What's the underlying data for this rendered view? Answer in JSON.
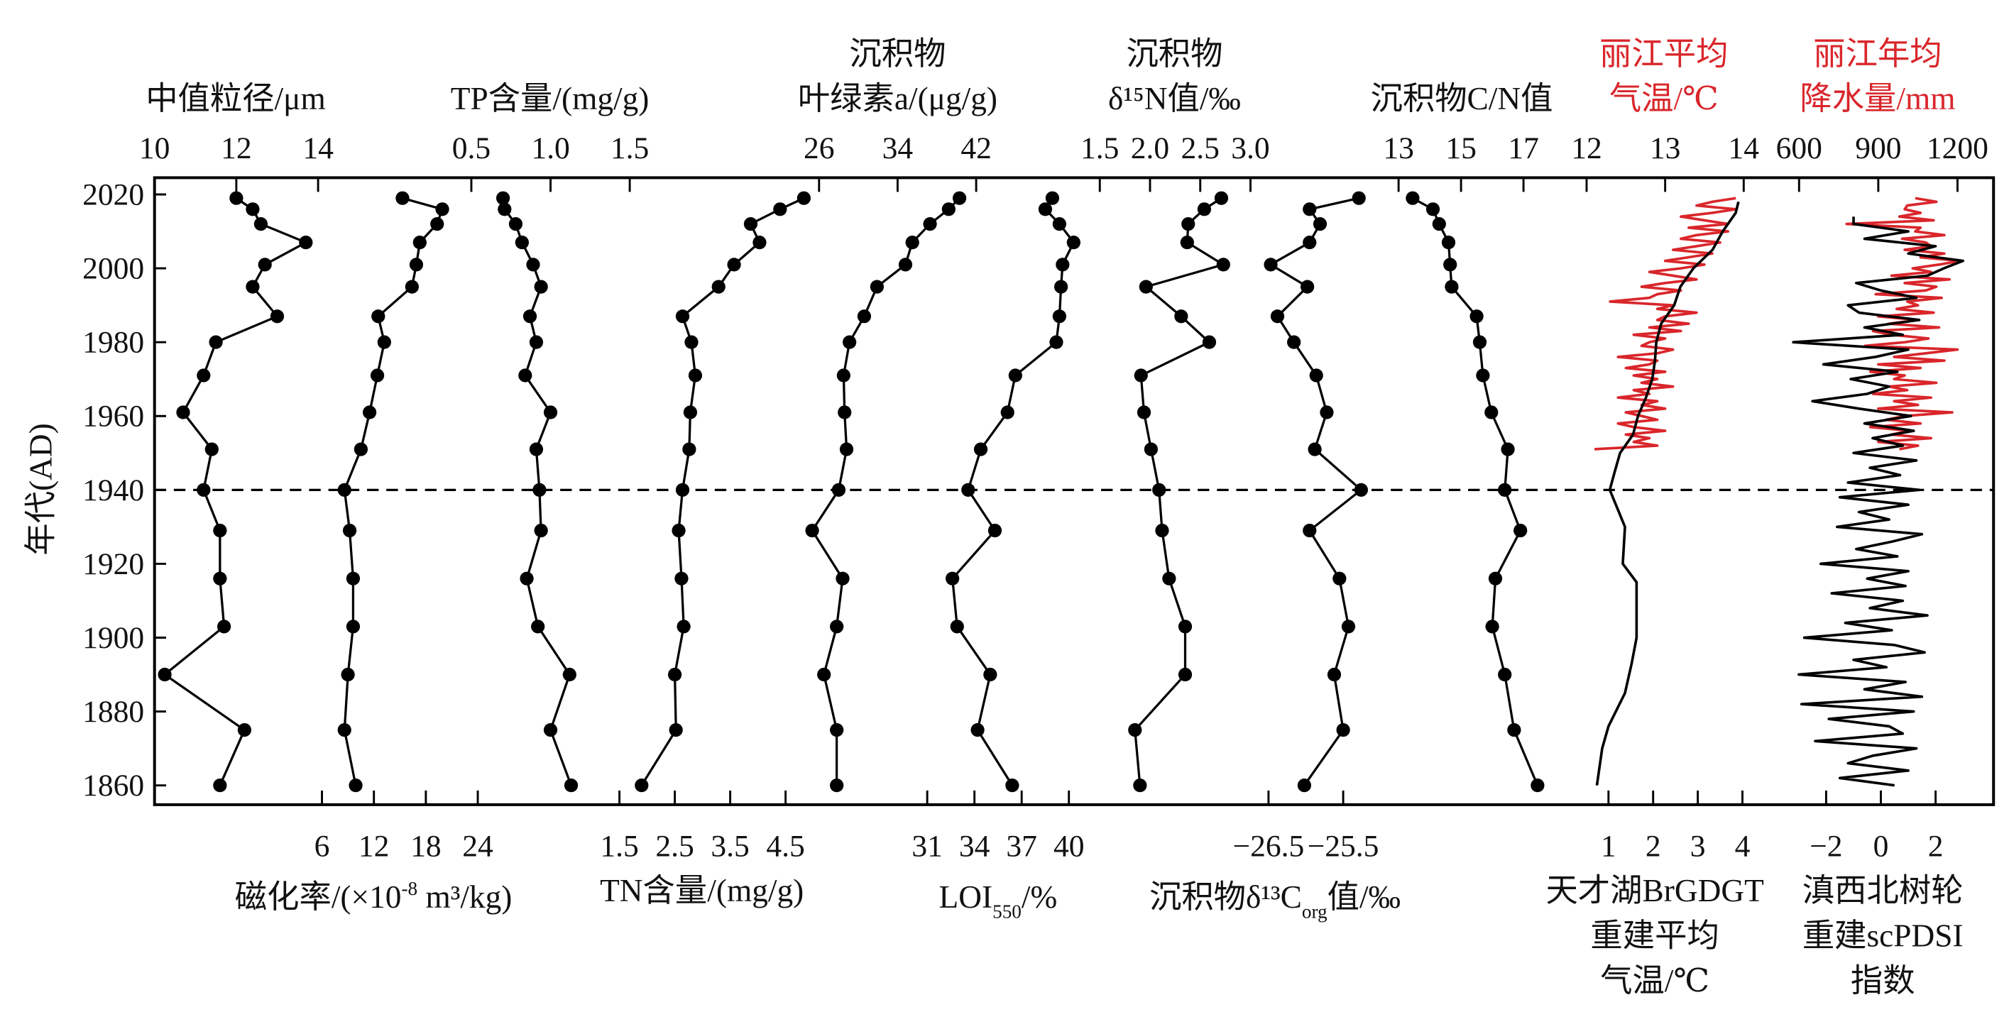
{
  "chart_data": {
    "type": "line",
    "title": "",
    "y_axis": {
      "label": "年代(AD)",
      "ticks": [
        1860,
        1880,
        1900,
        1920,
        1940,
        1960,
        1980,
        2000,
        2020
      ],
      "ylim": [
        1856,
        2024
      ]
    },
    "reference_line": {
      "year": 1940,
      "style": "dashed"
    },
    "sample_years": [
      2019,
      2016,
      2012,
      2007,
      2001,
      1995,
      1987,
      1980,
      1971,
      1961,
      1951,
      1940,
      1929,
      1916,
      1903,
      1890,
      1875,
      1860
    ],
    "series": [
      {
        "id": "grain",
        "axis": "top",
        "label_lines": [
          "中值粒径/μm"
        ],
        "ticks": [
          "10",
          "12",
          "14"
        ],
        "tick_values": [
          10,
          12,
          14
        ],
        "xlim": [
          10,
          14
        ],
        "color": "#000000",
        "markers": true,
        "values": [
          12.0,
          12.4,
          12.6,
          13.7,
          12.7,
          12.4,
          13.0,
          11.5,
          11.2,
          10.7,
          11.4,
          11.2,
          11.6,
          11.6,
          11.7,
          10.25,
          12.2,
          11.6
        ]
      },
      {
        "id": "mag",
        "axis": "bottom",
        "label_parts": {
          "pre": "磁化率/(×10",
          "sup": "-8",
          "post": " m³/kg)"
        },
        "ticks": [
          "6",
          "12",
          "18",
          "24"
        ],
        "tick_values": [
          6,
          12,
          18,
          24
        ],
        "xlim": [
          6,
          24
        ],
        "color": "#000000",
        "markers": true,
        "values": [
          15.3,
          19.9,
          19.3,
          17.3,
          16.9,
          16.4,
          12.5,
          13.2,
          12.4,
          11.5,
          10.5,
          8.6,
          9.2,
          9.6,
          9.6,
          9.0,
          8.6,
          9.9
        ]
      },
      {
        "id": "tp",
        "axis": "top",
        "label_lines": [
          "TP含量/(mg/g)"
        ],
        "ticks": [
          "0.5",
          "1.0",
          "1.5"
        ],
        "tick_values": [
          0.5,
          1.0,
          1.5
        ],
        "xlim": [
          0.5,
          1.5
        ],
        "color": "#000000",
        "markers": true,
        "values": [
          0.7,
          0.71,
          0.78,
          0.82,
          0.89,
          0.94,
          0.87,
          0.91,
          0.84,
          1.0,
          0.91,
          0.93,
          0.94,
          0.85,
          0.92,
          1.12,
          1.0,
          1.13
        ]
      },
      {
        "id": "tn",
        "axis": "bottom",
        "label_lines": [
          "TN含量/(mg/g)"
        ],
        "ticks": [
          "1.5",
          "2.5",
          "3.5",
          "4.5"
        ],
        "tick_values": [
          1.5,
          2.5,
          3.5,
          4.5
        ],
        "xlim": [
          1.5,
          4.5
        ],
        "color": "#000000",
        "markers": true,
        "values": [
          4.83,
          4.4,
          3.87,
          4.03,
          3.57,
          3.29,
          2.64,
          2.8,
          2.87,
          2.78,
          2.76,
          2.64,
          2.57,
          2.62,
          2.66,
          2.5,
          2.52,
          1.9
        ]
      },
      {
        "id": "chl",
        "axis": "top",
        "label_lines": [
          "沉积物",
          "叶绿素a/(μg/g)"
        ],
        "ticks": [
          "26",
          "34",
          "42"
        ],
        "tick_values": [
          26,
          34,
          42
        ],
        "xlim": [
          26,
          42
        ],
        "color": "#000000",
        "markers": true,
        "values": [
          40.3,
          39.2,
          37.3,
          35.5,
          34.8,
          31.9,
          30.6,
          29.1,
          28.5,
          28.6,
          28.8,
          28.0,
          25.3,
          28.4,
          27.8,
          26.5,
          27.8,
          27.8
        ]
      },
      {
        "id": "loi",
        "axis": "bottom",
        "label_parts": {
          "pre": "LOI",
          "sub": "550",
          "post": "/%"
        },
        "ticks": [
          "31",
          "34",
          "37",
          "40"
        ],
        "tick_values": [
          31,
          34,
          37,
          40
        ],
        "xlim": [
          31,
          40
        ],
        "color": "#000000",
        "markers": true,
        "values": [
          38.95,
          38.5,
          39.4,
          40.3,
          39.6,
          39.5,
          39.4,
          39.2,
          36.6,
          36.1,
          34.4,
          33.6,
          35.3,
          32.6,
          32.9,
          35.0,
          34.2,
          36.4
        ]
      },
      {
        "id": "d15n",
        "axis": "top",
        "label_lines": [
          "沉积物",
          "δ¹⁵N值/‰"
        ],
        "ticks": [
          "1.5",
          "2.0",
          "2.5",
          "3.0"
        ],
        "tick_values": [
          1.5,
          2.0,
          2.5,
          3.0
        ],
        "xlim": [
          1.5,
          3.0
        ],
        "color": "#000000",
        "markers": true,
        "values": [
          2.71,
          2.54,
          2.38,
          2.37,
          2.73,
          1.96,
          2.31,
          2.59,
          1.91,
          1.94,
          2.01,
          2.09,
          2.12,
          2.19,
          2.35,
          2.35,
          1.85,
          1.9
        ]
      },
      {
        "id": "d13c",
        "axis": "bottom",
        "label_parts": {
          "pre": "沉积物δ¹³C",
          "sub": "org",
          "post": "值/‰"
        },
        "ticks": [
          "−26.5",
          "−25.5"
        ],
        "tick_values": [
          -26.5,
          -25.5
        ],
        "xlim": [
          -26.5,
          -25.5
        ],
        "color": "#000000",
        "markers": true,
        "values": [
          -25.29,
          -25.95,
          -25.81,
          -25.95,
          -26.47,
          -25.98,
          -26.38,
          -26.16,
          -25.86,
          -25.72,
          -25.88,
          -25.26,
          -25.95,
          -25.55,
          -25.43,
          -25.62,
          -25.5,
          -26.02
        ]
      },
      {
        "id": "cn",
        "axis": "top",
        "label_lines": [
          "沉积物C/N值"
        ],
        "ticks": [
          "13",
          "15",
          "17"
        ],
        "tick_values": [
          13,
          15,
          17
        ],
        "xlim": [
          13,
          17
        ],
        "color": "#000000",
        "markers": true,
        "values": [
          13.45,
          14.1,
          14.3,
          14.6,
          14.65,
          14.7,
          15.5,
          15.6,
          15.7,
          15.97,
          16.5,
          16.4,
          16.9,
          16.1,
          16.0,
          16.4,
          16.7,
          17.45
        ]
      },
      {
        "id": "tempobs",
        "axis": "top",
        "label_lines": [
          "丽江平均",
          "气温/℃"
        ],
        "ticks": [
          "12",
          "13",
          "14"
        ],
        "tick_values": [
          12,
          13,
          14
        ],
        "xlim": [
          12,
          14
        ],
        "color": "#d9262b",
        "markers": false,
        "start_year": 1951,
        "step": 1,
        "values": [
          12.1,
          12.9,
          12.6,
          12.8,
          12.5,
          13.0,
          12.6,
          12.4,
          12.9,
          12.7,
          12.5,
          13.0,
          12.7,
          12.9,
          12.4,
          12.8,
          12.6,
          13.1,
          12.7,
          12.9,
          12.6,
          13.0,
          12.5,
          12.8,
          12.9,
          12.4,
          12.9,
          13.1,
          12.7,
          12.8,
          13.0,
          12.6,
          13.2,
          12.8,
          13.3,
          12.9,
          13.0,
          13.4,
          12.9,
          13.1,
          12.3,
          12.8,
          12.9,
          13.2,
          12.7,
          13.0,
          13.4,
          13.1,
          12.8,
          13.2,
          13.5,
          13.0,
          13.3,
          13.6,
          13.1,
          13.4,
          13.7,
          13.2,
          13.4,
          13.8,
          13.3,
          13.8,
          13.5,
          13.2,
          13.6,
          13.9,
          13.4,
          13.6,
          13.9
        ]
      },
      {
        "id": "gdgt",
        "axis": "bottom",
        "label_lines": [
          "天才湖BrGDGT",
          "重建平均",
          "气温/℃"
        ],
        "ticks": [
          "1",
          "2",
          "3",
          "4"
        ],
        "tick_values": [
          1,
          2,
          3,
          4
        ],
        "xlim": [
          1,
          4
        ],
        "color": "#000000",
        "markers": false,
        "years": [
          1860,
          1870,
          1876,
          1885,
          1893,
          1900,
          1915,
          1920,
          1930,
          1935,
          1940,
          1945,
          1950,
          1955,
          1960,
          1965,
          1970,
          1975,
          1980,
          1985,
          1990,
          1995,
          2000,
          2005,
          2010,
          2015,
          2018
        ],
        "values": [
          0.74,
          0.86,
          1.0,
          1.37,
          1.52,
          1.63,
          1.63,
          1.32,
          1.37,
          1.2,
          1.03,
          1.14,
          1.26,
          1.55,
          1.66,
          1.84,
          1.98,
          2.04,
          2.07,
          2.18,
          2.47,
          2.61,
          2.9,
          3.33,
          3.56,
          3.85,
          3.91
        ]
      },
      {
        "id": "precip",
        "axis": "top",
        "label_lines": [
          "丽江年均",
          "降水量/mm"
        ],
        "ticks": [
          "600",
          "900",
          "1200"
        ],
        "tick_values": [
          600,
          900,
          1200
        ],
        "xlim": [
          600,
          1200
        ],
        "color": "#d9262b",
        "markers": false,
        "start_year": 1951,
        "step": 1,
        "values": [
          980,
          1050,
          900,
          1100,
          950,
          1020,
          870,
          1060,
          930,
          1000,
          1180,
          900,
          1050,
          960,
          1100,
          880,
          1010,
          940,
          1120,
          960,
          1000,
          870,
          1060,
          900,
          1150,
          960,
          1080,
          1200,
          850,
          1000,
          1090,
          950,
          880,
          1130,
          940,
          1050,
          900,
          1110,
          970,
          1050,
          1010,
          1140,
          890,
          1080,
          1120,
          1000,
          1170,
          950,
          1100,
          1030,
          1130,
          1210,
          1060,
          1150,
          1000,
          1100,
          1080,
          990,
          1150,
          1040,
          1060,
          780,
          1110,
          980,
          1060,
          1000,
          1010,
          1120,
          1040
        ]
      },
      {
        "id": "pdsi",
        "axis": "bottom",
        "label_lines": [
          "滇西北树轮",
          "重建scPDSI",
          "指数"
        ],
        "ticks": [
          "−2",
          "0",
          "2"
        ],
        "tick_values": [
          -2,
          0,
          2
        ],
        "xlim": [
          -2,
          2
        ],
        "color": "#000000",
        "markers": false,
        "start_year": 1860,
        "step": 2,
        "values": [
          0.5,
          -1.5,
          1.0,
          -1.2,
          -0.3,
          1.3,
          -2.4,
          0.8,
          0.3,
          -1.9,
          1.2,
          -2.9,
          1.5,
          -0.6,
          0.9,
          -3.0,
          0.2,
          -1.0,
          1.6,
          0.5,
          -2.8,
          0.4,
          -1.3,
          1.7,
          -0.4,
          0.8,
          -1.8,
          0.9,
          -0.5,
          1.0,
          -2.2,
          0.6,
          -0.9,
          0.4,
          1.5,
          -1.6,
          0.3,
          -0.8,
          1.0,
          -1.5,
          1.4,
          -1.2,
          0.7,
          -0.4,
          1.3,
          -1.0,
          0.8,
          -0.3,
          1.2,
          -0.6,
          1.1,
          -0.8,
          -2.5,
          -0.5,
          0.3,
          -1.1,
          0.6,
          -2.1,
          -0.2,
          1.0,
          -3.2,
          0.8,
          -0.6,
          1.4,
          -0.8,
          -1.2,
          1.3,
          0.0,
          -0.9,
          1.7,
          2.3,
          3.0,
          1.0,
          2.0,
          -0.6,
          1.0,
          -1.0,
          -1.0
        ]
      }
    ]
  }
}
